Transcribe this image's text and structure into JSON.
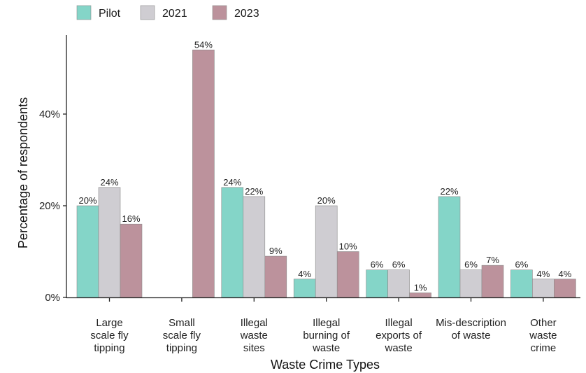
{
  "chart_data": {
    "type": "bar",
    "xlabel": "Waste Crime Types",
    "ylabel": "Percentage of respondents",
    "ylim": [
      0,
      57
    ],
    "yticks": [
      0,
      20,
      40
    ],
    "ytick_labels": [
      "0%",
      "20%",
      "40%"
    ],
    "legend_position": "top-left",
    "categories": [
      [
        "Large",
        "scale fly",
        "tipping"
      ],
      [
        "Small",
        "scale fly",
        "tipping"
      ],
      [
        "Illegal",
        "waste",
        "sites"
      ],
      [
        "Illegal",
        "burning of",
        "waste"
      ],
      [
        "Illegal",
        "exports of",
        "waste"
      ],
      [
        "Mis-description",
        "of waste"
      ],
      [
        "Other",
        "waste",
        "crime"
      ]
    ],
    "series": [
      {
        "name": "Pilot",
        "color": "#84d5c8",
        "values": [
          20,
          null,
          24,
          4,
          6,
          22,
          6
        ],
        "labels": [
          "20%",
          "",
          "24%",
          "4%",
          "6%",
          "22%",
          "6%"
        ]
      },
      {
        "name": "2021",
        "color": "#cfcdd2",
        "values": [
          24,
          null,
          22,
          20,
          6,
          6,
          4
        ],
        "labels": [
          "24%",
          "",
          "22%",
          "20%",
          "6%",
          "6%",
          "4%"
        ]
      },
      {
        "name": "2023",
        "color": "#bc929c",
        "values": [
          16,
          54,
          9,
          10,
          1,
          7,
          4
        ],
        "labels": [
          "16%",
          "54%",
          "9%",
          "10%",
          "1%",
          "7%",
          "4%"
        ]
      }
    ]
  }
}
